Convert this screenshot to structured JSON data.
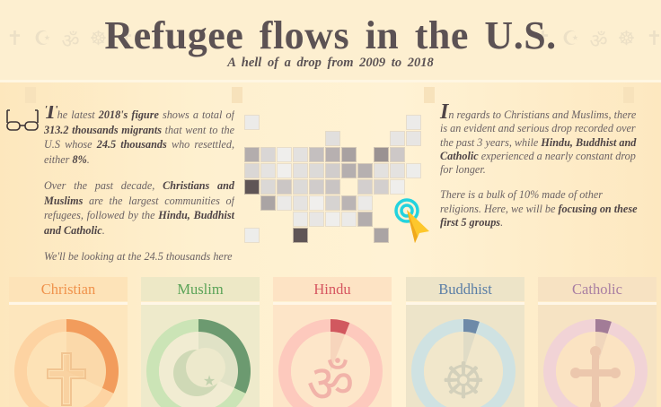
{
  "header": {
    "title": "Refugee flows in the U.S.",
    "subtitle": "A hell of a drop from 2009 to 2018",
    "decor_symbols": [
      "latin-cross",
      "crescent-star",
      "om",
      "dharma-wheel",
      "budded-cross"
    ]
  },
  "intro_left": {
    "icon": "glasses-icon",
    "p1": {
      "dropcap": "T",
      "t1": "he latest ",
      "b1": "2018's figure",
      "t2": " shows a total of ",
      "b2": "313.2 thousands migrants",
      "t3": " that went to the U.S whose ",
      "b3": "24.5 thousands",
      "t4": " who resettled, either ",
      "b4": "8%",
      "t5": "."
    },
    "p2": {
      "t1": "Over the past decade, ",
      "b1": "Christians and Muslims",
      "t2": " are the largest communities of refugees, followed by the ",
      "b2": "Hindu, Buddhist and Catholic",
      "t3": "."
    },
    "p3": {
      "t1": "We'll be looking at the 24.5 thousands here"
    }
  },
  "intro_right": {
    "p1": {
      "dropcap": "I",
      "t1": "n regards to Christians and Muslims, there is an evident and serious drop recorded over the past 3 years, while ",
      "b1": "Hindu, Buddhist and Catholic",
      "t2": " experienced a nearly constant drop for longer."
    },
    "p2": {
      "t1": "There is a bulk of 10% made of other religions. Here, we will be ",
      "b1": "focusing on these first 5 groups",
      "t2": "."
    }
  },
  "map": {
    "hint_icon": "tap-cursor-icon",
    "tiles": [
      {
        "c": 0,
        "r": 0,
        "color": "#ecebe9"
      },
      {
        "c": 10,
        "r": 0,
        "color": "#ecebe9"
      },
      {
        "c": 5,
        "r": 1,
        "color": "#e1dfdd"
      },
      {
        "c": 9,
        "r": 1,
        "color": "#e7e5e3"
      },
      {
        "c": 10,
        "r": 1,
        "color": "#e7e5e3"
      },
      {
        "c": 0,
        "r": 2,
        "color": "#b3adad"
      },
      {
        "c": 1,
        "r": 2,
        "color": "#d9d6d5"
      },
      {
        "c": 2,
        "r": 2,
        "color": "#efeeec"
      },
      {
        "c": 3,
        "r": 2,
        "color": "#e3e1df"
      },
      {
        "c": 4,
        "r": 2,
        "color": "#c4bfbf"
      },
      {
        "c": 5,
        "r": 2,
        "color": "#b7b0b0"
      },
      {
        "c": 6,
        "r": 2,
        "color": "#a8a1a1"
      },
      {
        "c": 8,
        "r": 2,
        "color": "#9a9292"
      },
      {
        "c": 9,
        "r": 2,
        "color": "#cdc8c7"
      },
      {
        "c": 0,
        "r": 3,
        "color": "#dad7d5"
      },
      {
        "c": 1,
        "r": 3,
        "color": "#e5e3e1"
      },
      {
        "c": 2,
        "r": 3,
        "color": "#f0efed"
      },
      {
        "c": 3,
        "r": 3,
        "color": "#e3e1df"
      },
      {
        "c": 4,
        "r": 3,
        "color": "#dcdad8"
      },
      {
        "c": 5,
        "r": 3,
        "color": "#d1cdcc"
      },
      {
        "c": 6,
        "r": 3,
        "color": "#b5afaf"
      },
      {
        "c": 7,
        "r": 3,
        "color": "#b6b0b0"
      },
      {
        "c": 8,
        "r": 3,
        "color": "#e3e1df"
      },
      {
        "c": 9,
        "r": 3,
        "color": "#e4e2e0"
      },
      {
        "c": 10,
        "r": 3,
        "color": "#ededeb"
      },
      {
        "c": 0,
        "r": 4,
        "color": "#5f5556"
      },
      {
        "c": 1,
        "r": 4,
        "color": "#dbd8d6"
      },
      {
        "c": 2,
        "r": 4,
        "color": "#cbc6c5"
      },
      {
        "c": 3,
        "r": 4,
        "color": "#dcdad8"
      },
      {
        "c": 4,
        "r": 4,
        "color": "#d0cccb"
      },
      {
        "c": 5,
        "r": 4,
        "color": "#c9c4c3"
      },
      {
        "c": 7,
        "r": 4,
        "color": "#d3cfce"
      },
      {
        "c": 8,
        "r": 4,
        "color": "#d3cfce"
      },
      {
        "c": 9,
        "r": 4,
        "color": "#efeeec"
      },
      {
        "c": 1,
        "r": 5,
        "color": "#aaa4a4"
      },
      {
        "c": 2,
        "r": 5,
        "color": "#ebeae8"
      },
      {
        "c": 3,
        "r": 5,
        "color": "#e5e3e1"
      },
      {
        "c": 4,
        "r": 5,
        "color": "#f0efed"
      },
      {
        "c": 5,
        "r": 5,
        "color": "#d6d3d1"
      },
      {
        "c": 6,
        "r": 5,
        "color": "#bab4b4"
      },
      {
        "c": 7,
        "r": 5,
        "color": "#ebeae8"
      },
      {
        "c": 3,
        "r": 6,
        "color": "#ebeae8"
      },
      {
        "c": 4,
        "r": 6,
        "color": "#e8e6e4"
      },
      {
        "c": 5,
        "r": 6,
        "color": "#efeeec"
      },
      {
        "c": 6,
        "r": 6,
        "color": "#ebeae8"
      },
      {
        "c": 7,
        "r": 6,
        "color": "#b3adad"
      },
      {
        "c": 0,
        "r": 7,
        "color": "#ededeb"
      },
      {
        "c": 3,
        "r": 7,
        "color": "#5f5556"
      },
      {
        "c": 8,
        "r": 7,
        "color": "#aaa4a4"
      }
    ]
  },
  "groups": [
    {
      "label": "Christian",
      "icon": "latin-cross-icon",
      "label_color": "#f0924b",
      "head_bg": "#fde3b8",
      "body_bg": "#fde6bd",
      "ring_bg": "#fdd3a2",
      "ring_fg": "#f29c5c",
      "inner": "#fde2b6",
      "share": 0.32
    },
    {
      "label": "Muslim",
      "icon": "crescent-star-icon",
      "label_color": "#5aa357",
      "head_bg": "#ede8c6",
      "body_bg": "#eeeacb",
      "ring_bg": "#cbe4b6",
      "ring_fg": "#6c9a70",
      "inner": "#f1ecd2",
      "share": 0.32
    },
    {
      "label": "Hindu",
      "icon": "om-icon",
      "label_color": "#d65560",
      "head_bg": "#fde3c4",
      "body_bg": "#fde5c8",
      "ring_bg": "#fdc9bd",
      "ring_fg": "#d1585f",
      "inner": "#fde6c9",
      "share": 0.06
    },
    {
      "label": "Buddhist",
      "icon": "dharma-wheel-icon",
      "label_color": "#5a7ea6",
      "head_bg": "#ede4c8",
      "body_bg": "#ede4c9",
      "ring_bg": "#cfe2e2",
      "ring_fg": "#6d8aa8",
      "inner": "#f1e7cb",
      "share": 0.05
    },
    {
      "label": "Catholic",
      "icon": "budded-cross-icon",
      "label_color": "#a87ea2",
      "head_bg": "#f7e2c2",
      "body_bg": "#f6e3c3",
      "ring_bg": "#f1d3d6",
      "ring_fg": "#a27c97",
      "inner": "#fbe3c2",
      "share": 0.05
    }
  ]
}
